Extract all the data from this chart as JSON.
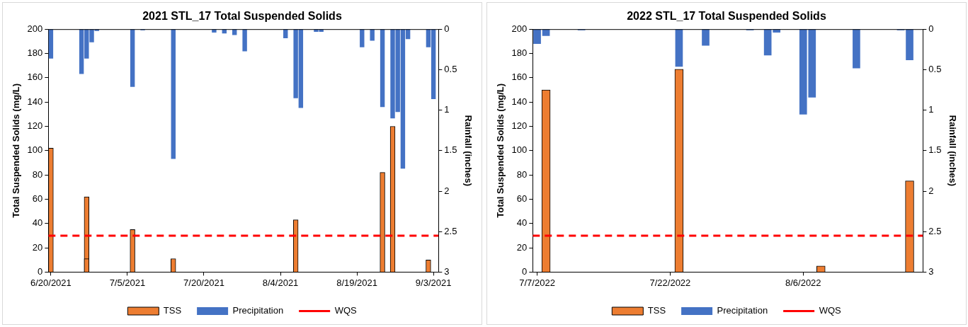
{
  "chart_data": [
    {
      "type": "bar",
      "title": "2021 STL_17 Total Suspended Solids",
      "ylabel": "Total Suspended Solids (mg/L)",
      "y2label": "Rainfall (inches)",
      "xlim": [
        "2021-06-19T12:00",
        "2021-09-04"
      ],
      "xticks": [
        {
          "value": "2021-06-20",
          "label": "6/20/2021"
        },
        {
          "value": "2021-07-05",
          "label": "7/5/2021"
        },
        {
          "value": "2021-07-20",
          "label": "7/20/2021"
        },
        {
          "value": "2021-08-04",
          "label": "8/4/2021"
        },
        {
          "value": "2021-08-19",
          "label": "8/19/2021"
        },
        {
          "value": "2021-09-03",
          "label": "9/3/2021"
        }
      ],
      "ylim": [
        0,
        200
      ],
      "yticks": [
        0,
        20,
        40,
        60,
        80,
        100,
        120,
        140,
        160,
        180,
        200
      ],
      "y2lim": [
        3,
        0
      ],
      "y2ticks": [
        0,
        0.5,
        1,
        1.5,
        2,
        2.5,
        3
      ],
      "legend": "bottom",
      "grid": false,
      "series": [
        {
          "name": "TSS",
          "color": "#ed7d31",
          "x": [
            "2021-06-20",
            "2021-06-27",
            "2021-07-06",
            "2021-07-14",
            "2021-08-07",
            "2021-08-24",
            "2021-08-26",
            "2021-09-02"
          ],
          "values": [
            102,
            62,
            35,
            11,
            43,
            82,
            120,
            10
          ]
        },
        {
          "name": "Precipitation",
          "color": "#4472c4",
          "axis": "y2",
          "x": [
            "2021-06-20",
            "2021-06-26",
            "2021-06-27",
            "2021-06-28",
            "2021-06-29",
            "2021-07-06",
            "2021-07-08",
            "2021-07-14",
            "2021-07-22",
            "2021-07-24",
            "2021-07-26",
            "2021-07-28",
            "2021-08-05",
            "2021-08-07",
            "2021-08-08",
            "2021-08-11",
            "2021-08-12",
            "2021-08-20",
            "2021-08-22",
            "2021-08-24",
            "2021-08-26",
            "2021-08-27",
            "2021-08-28",
            "2021-08-29",
            "2021-09-02",
            "2021-09-03"
          ],
          "values": [
            0.36,
            0.55,
            0.36,
            0.16,
            0.02,
            0.71,
            0.01,
            1.6,
            0.04,
            0.05,
            0.07,
            0.27,
            0.11,
            0.85,
            0.97,
            0.03,
            0.03,
            0.22,
            0.14,
            0.96,
            1.1,
            1.02,
            1.72,
            0.12,
            0.22,
            0.86
          ]
        },
        {
          "color": "#ed7d31",
          "x": [
            "2021-06-27"
          ],
          "values": [
            11
          ]
        }
      ],
      "ref_lines": [
        {
          "axis": "y",
          "value": 30,
          "label": "WQS",
          "color": "#ff0000",
          "line_style": "dashed"
        }
      ]
    },
    {
      "type": "bar",
      "title": "2022 STL_17 Total Suspended Solids",
      "ylabel": "Total Suspended Solids (mg/L)",
      "y2label": "Rainfall (inches)",
      "xlim": [
        "2022-07-06T12:00",
        "2022-08-19T12:00"
      ],
      "xticks": [
        {
          "value": "2022-07-07",
          "label": "7/7/2022"
        },
        {
          "value": "2022-07-22",
          "label": "7/22/2022"
        },
        {
          "value": "2022-08-06",
          "label": "8/6/2022"
        }
      ],
      "ylim": [
        0,
        200
      ],
      "yticks": [
        0,
        20,
        40,
        60,
        80,
        100,
        120,
        140,
        160,
        180,
        200
      ],
      "y2lim": [
        3,
        0
      ],
      "y2ticks": [
        0,
        0.5,
        1,
        1.5,
        2,
        2.5,
        3
      ],
      "legend": "bottom",
      "grid": false,
      "series": [
        {
          "name": "TSS",
          "color": "#ed7d31",
          "x": [
            "2022-07-08",
            "2022-07-23",
            "2022-08-08",
            "2022-08-18"
          ],
          "values": [
            150,
            167,
            5,
            75
          ]
        },
        {
          "name": "Precipitation",
          "color": "#4472c4",
          "axis": "y2",
          "x": [
            "2022-07-07",
            "2022-07-08",
            "2022-07-12",
            "2022-07-23",
            "2022-07-26",
            "2022-07-31",
            "2022-08-02",
            "2022-08-03",
            "2022-08-06",
            "2022-08-07",
            "2022-08-12",
            "2022-08-17",
            "2022-08-18"
          ],
          "values": [
            0.18,
            0.08,
            0.01,
            0.46,
            0.2,
            0.01,
            0.32,
            0.04,
            1.05,
            0.84,
            0.48,
            0.01,
            0.38
          ]
        }
      ],
      "ref_lines": [
        {
          "axis": "y",
          "value": 30,
          "label": "WQS",
          "color": "#ff0000",
          "line_style": "dashed"
        }
      ]
    }
  ]
}
